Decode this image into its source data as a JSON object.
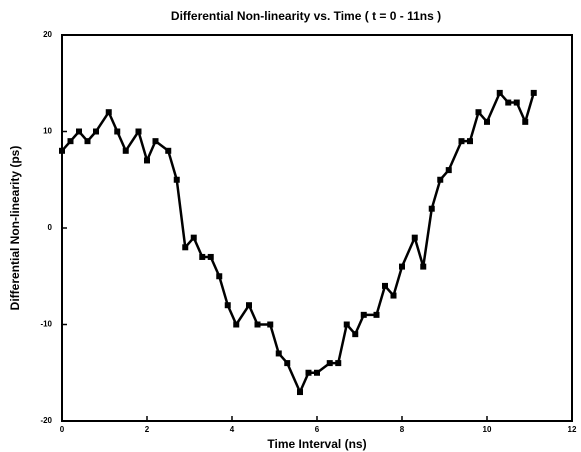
{
  "chart_data": {
    "type": "line",
    "title": "Differential Non-linearity vs. Time ( t = 0 - 11ns )",
    "x_label": "Time Interval (ns)",
    "y_label": "Differential Non-linearity (ps)",
    "xlim": [
      0,
      12
    ],
    "xticks": [
      0,
      2,
      4,
      6,
      8,
      10,
      12
    ],
    "ylim": [
      -20,
      20
    ],
    "yticks": [
      -20,
      -10,
      0,
      10,
      20
    ],
    "series": [
      {
        "color": "#000000",
        "x": [
          0,
          0.2,
          0.4,
          0.6,
          0.8,
          1.1,
          1.3,
          1.5,
          1.8,
          2.0,
          2.2,
          2.5,
          2.7,
          2.9,
          3.1,
          3.3,
          3.5,
          3.7,
          3.9,
          4.1,
          4.4,
          4.6,
          4.9,
          5.1,
          5.3,
          5.6,
          5.8,
          6.0,
          6.3,
          6.5,
          6.7,
          6.9,
          7.1,
          7.4,
          7.6,
          7.8,
          8.0,
          8.3,
          8.5,
          8.7,
          8.9,
          9.1,
          9.4,
          9.6,
          9.8,
          10.0,
          10.3,
          10.5,
          10.7,
          10.9,
          11.1
        ],
        "values": [
          8,
          9,
          10,
          9,
          10,
          12,
          10,
          8,
          10,
          7,
          9,
          8,
          5,
          -2,
          -1,
          -3,
          -3,
          -5,
          -8,
          -10,
          -8,
          -10,
          -10,
          -13,
          -14,
          -17,
          -15,
          -15,
          -14,
          -14,
          -10,
          -11,
          -9,
          -9,
          -6,
          -7,
          -4,
          -1,
          -4,
          2,
          5,
          6,
          9,
          9,
          12,
          11,
          14,
          13,
          13,
          11,
          14
        ]
      }
    ]
  }
}
